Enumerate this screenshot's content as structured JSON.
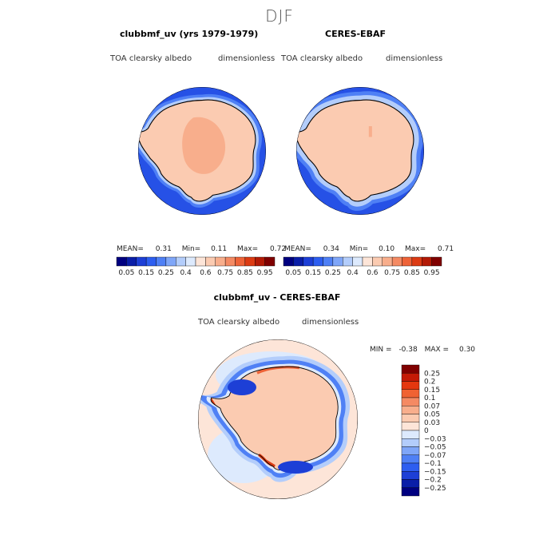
{
  "title": "DJF",
  "panels": [
    {
      "title": "clubbmf_uv (yrs 1979-1979)",
      "variable": "TOA clearsky albedo",
      "units": "dimensionless",
      "stats": {
        "mean_label": "MEAN=",
        "mean": "0.31",
        "min_label": "Min=",
        "min": "0.11",
        "max_label": "Max=",
        "max": "0.72"
      }
    },
    {
      "title": "CERES-EBAF",
      "variable": "TOA clearsky albedo",
      "units": "dimensionless",
      "stats": {
        "mean_label": "MEAN=",
        "mean": "0.34",
        "min_label": "Min=",
        "min": "0.10",
        "max_label": "Max=",
        "max": "0.71"
      }
    },
    {
      "title": "clubbmf_uv - CERES-EBAF",
      "variable": "TOA clearsky albedo",
      "units": "dimensionless",
      "stats": {
        "min_label": "MIN =",
        "min": "-0.38",
        "max_label": "MAX =",
        "max": "0.30"
      }
    }
  ],
  "colorbar_abs": {
    "colors": [
      "#000080",
      "#0a1ea8",
      "#1d3fd6",
      "#2d5ef0",
      "#4f80f5",
      "#7fa6f8",
      "#b3cdfb",
      "#ddeafd",
      "#fde5d8",
      "#fbcbb1",
      "#f8ae8c",
      "#f48a63",
      "#ee6338",
      "#dc3b13",
      "#b31a06",
      "#800000"
    ],
    "labels": [
      "0.05",
      "0.15",
      "0.25",
      "0.4",
      "0.6",
      "0.75",
      "0.85",
      "0.95"
    ]
  },
  "colorbar_diff": {
    "colors": [
      "#800000",
      "#c41a06",
      "#e4370f",
      "#f06232",
      "#f58a63",
      "#f8ae8c",
      "#fbcbb1",
      "#fde5d8",
      "#ddeafd",
      "#b3cdfb",
      "#7fa6f8",
      "#4f80f5",
      "#2d5ef0",
      "#1d3fd6",
      "#0a1ea8",
      "#000080"
    ],
    "labels": [
      "0.25",
      "0.2",
      "0.15",
      "0.1",
      "0.07",
      "0.05",
      "0.03",
      "0",
      "−0.03",
      "−0.05",
      "−0.07",
      "−0.1",
      "−0.15",
      "−0.2",
      "−0.25"
    ]
  }
}
